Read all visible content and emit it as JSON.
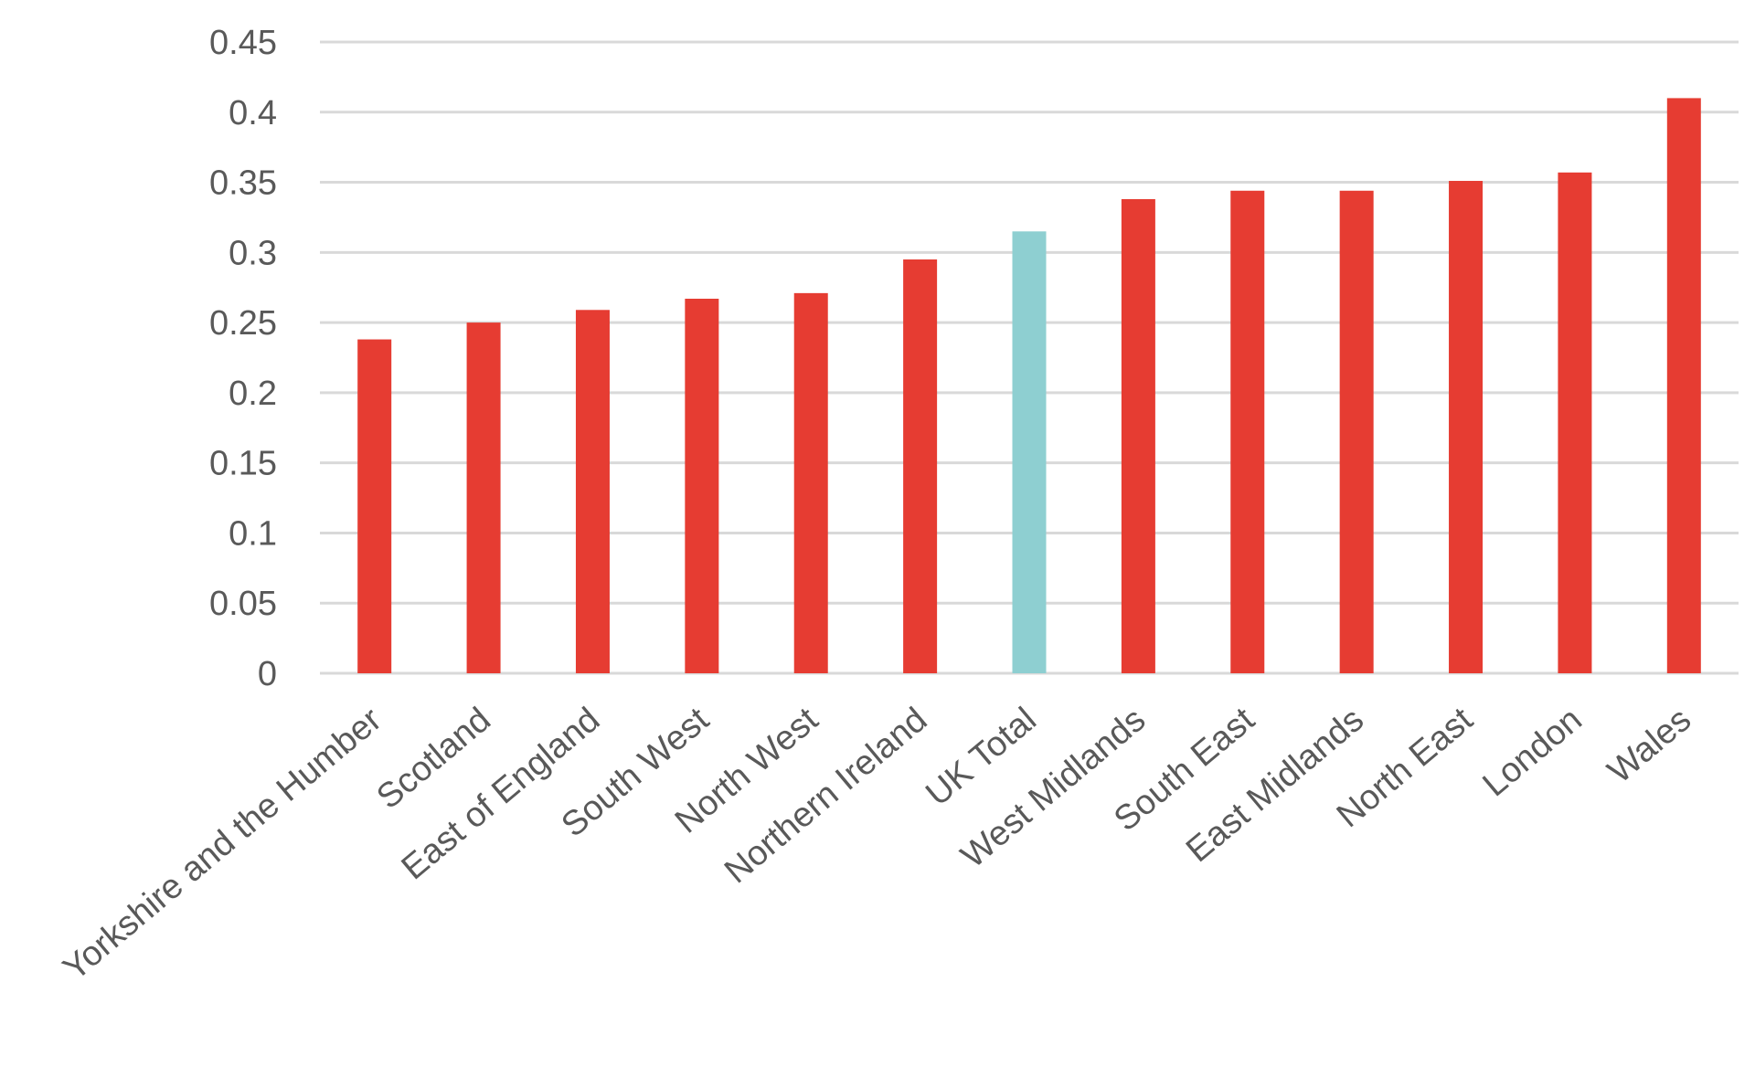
{
  "chart_data": {
    "type": "bar",
    "title": "",
    "xlabel": "",
    "ylabel": "",
    "ylim": [
      0,
      0.45
    ],
    "yticks": [
      0,
      0.05,
      0.1,
      0.15,
      0.2,
      0.25,
      0.3,
      0.35,
      0.4,
      0.45
    ],
    "ytick_labels": [
      "0",
      "0.05",
      "0.1",
      "0.15",
      "0.2",
      "0.25",
      "0.3",
      "0.35",
      "0.4",
      "0.45"
    ],
    "grid": true,
    "legend": "none",
    "categories": [
      "Yorkshire and the Humber",
      "Scotland",
      "East of England",
      "South West",
      "North West",
      "Northern Ireland",
      "UK Total",
      "West Midlands",
      "South East",
      "East Midlands",
      "North East",
      "London",
      "Wales"
    ],
    "values": [
      0.238,
      0.25,
      0.259,
      0.267,
      0.271,
      0.295,
      0.315,
      0.338,
      0.344,
      0.344,
      0.351,
      0.357,
      0.41
    ],
    "colors": {
      "default": "#e63c32",
      "highlight": "#8ecfd1",
      "highlight_category": "UK Total",
      "grid": "#d9d9d9",
      "text": "#595959"
    }
  }
}
